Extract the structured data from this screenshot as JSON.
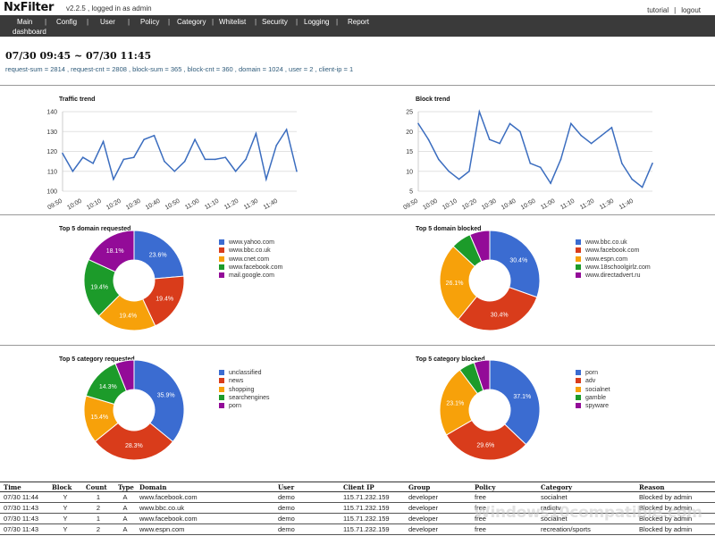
{
  "app": {
    "name": "NxFilter",
    "version_text": "v2.2.5 , logged in as admin",
    "links": {
      "tutorial": "tutorial",
      "separator": "|",
      "logout": "logout"
    }
  },
  "nav": {
    "items": [
      "Main",
      "Config",
      "User",
      "Policy",
      "Category",
      "Whitelist",
      "Security",
      "Logging",
      "Report"
    ],
    "separator": "|",
    "subitem": "dashboard"
  },
  "header": {
    "range": "07/30 09:45 ~ 07/30 11:45",
    "stats": "request-sum = 2814 , request-cnt = 2808 , block-sum = 365 , block-cnt = 360 , domain = 1024 , user = 2 , client-ip = 1"
  },
  "colors": {
    "line": "#3b6dbf",
    "nav_bg": "#3a3a3a",
    "pie": [
      "#3b6cd1",
      "#d93c1b",
      "#f7a10a",
      "#1c9b2a",
      "#930b98"
    ]
  },
  "charts": {
    "traffic_trend": {
      "title": "Traffic trend",
      "chart_data": {
        "type": "line",
        "title": "Traffic trend",
        "xlabel": "",
        "ylabel": "",
        "ylim": [
          100,
          140
        ],
        "yticks": [
          "100",
          "110",
          "120",
          "130",
          "140"
        ],
        "xticks": [
          "09:50",
          "10:00",
          "10:10",
          "10:20",
          "10:30",
          "10:40",
          "10:50",
          "11:00",
          "11:10",
          "11:20",
          "11:30",
          "11:40"
        ],
        "values": [
          119,
          110,
          117,
          114,
          125,
          106,
          116,
          117,
          126,
          128,
          115,
          110,
          115,
          126,
          116,
          116,
          117,
          110,
          116,
          129,
          106,
          123,
          131,
          110
        ],
        "grid": true
      }
    },
    "block_trend": {
      "title": "Block trend",
      "chart_data": {
        "type": "line",
        "title": "Block trend",
        "xlabel": "",
        "ylabel": "",
        "ylim": [
          5,
          25
        ],
        "yticks": [
          "5",
          "10",
          "15",
          "20",
          "25"
        ],
        "xticks": [
          "09:50",
          "10:00",
          "10:10",
          "10:20",
          "10:30",
          "10:40",
          "10:50",
          "11:00",
          "11:10",
          "11:20",
          "11:30",
          "11:40"
        ],
        "values": [
          22,
          18,
          13,
          10,
          8,
          10,
          25,
          18,
          17,
          22,
          20,
          12,
          11,
          7,
          13,
          22,
          19,
          17,
          19,
          21,
          12,
          8,
          6,
          12
        ],
        "grid": true
      }
    },
    "top_domain_requested": {
      "title": "Top 5 domain requested",
      "chart_data": {
        "type": "pie",
        "title": "Top 5 domain requested",
        "categories": [
          "www.yahoo.com",
          "www.bbc.co.uk",
          "www.cnet.com",
          "www.facebook.com",
          "mail.google.com"
        ],
        "values": [
          23.6,
          19.4,
          19.4,
          19.4,
          18.1
        ],
        "labels": [
          "23.6%",
          "19.4%",
          "19.4%",
          "19.4%",
          "18.1%"
        ]
      }
    },
    "top_domain_blocked": {
      "title": "Top 5 domain blocked",
      "chart_data": {
        "type": "pie",
        "title": "Top 5 domain blocked",
        "categories": [
          "www.bbc.co.uk",
          "www.facebook.com",
          "www.espn.com",
          "www.18schoolgirlz.com",
          "www.directadvert.ru"
        ],
        "values": [
          30.4,
          30.4,
          26.1,
          6.5,
          6.5
        ],
        "labels": [
          "30.4%",
          "30.4%",
          "26.1%",
          "",
          ""
        ]
      }
    },
    "top_category_requested": {
      "title": "Top 5 category requested",
      "chart_data": {
        "type": "pie",
        "title": "Top 5 category requested",
        "categories": [
          "unclassified",
          "news",
          "shopping",
          "searchengines",
          "porn"
        ],
        "values": [
          35.9,
          28.3,
          15.4,
          14.3,
          6.1
        ],
        "labels": [
          "35.9%",
          "28.3%",
          "15.4%",
          "14.3%",
          ""
        ]
      }
    },
    "top_category_blocked": {
      "title": "Top 5 category blocked",
      "chart_data": {
        "type": "pie",
        "title": "Top 5 category blocked",
        "categories": [
          "porn",
          "adv",
          "socialnet",
          "gamble",
          "spyware"
        ],
        "values": [
          37.1,
          29.6,
          23.1,
          5.1,
          5.1
        ],
        "labels": [
          "37.1%",
          "29.6%",
          "23.1%",
          "",
          ""
        ]
      }
    }
  },
  "log_table": {
    "headers": [
      "Time",
      "Block",
      "Count",
      "Type",
      "Domain",
      "User",
      "Client IP",
      "Group",
      "Policy",
      "Category",
      "Reason"
    ],
    "rows": [
      [
        "07/30 11:44",
        "Y",
        "1",
        "A",
        "www.facebook.com",
        "demo",
        "115.71.232.159",
        "developer",
        "free",
        "socialnet",
        "Blocked by admin"
      ],
      [
        "07/30 11:43",
        "Y",
        "2",
        "A",
        "www.bbc.co.uk",
        "demo",
        "115.71.232.159",
        "developer",
        "free",
        "radiotv",
        "Blocked by admin"
      ],
      [
        "07/30 11:43",
        "Y",
        "1",
        "A",
        "www.facebook.com",
        "demo",
        "115.71.232.159",
        "developer",
        "free",
        "socialnet",
        "Blocked by admin"
      ],
      [
        "07/30 11:43",
        "Y",
        "2",
        "A",
        "www.espn.com",
        "demo",
        "115.71.232.159",
        "developer",
        "free",
        "recreation/sports",
        "Blocked by admin"
      ]
    ]
  },
  "watermark": "Windows10compatible.com"
}
